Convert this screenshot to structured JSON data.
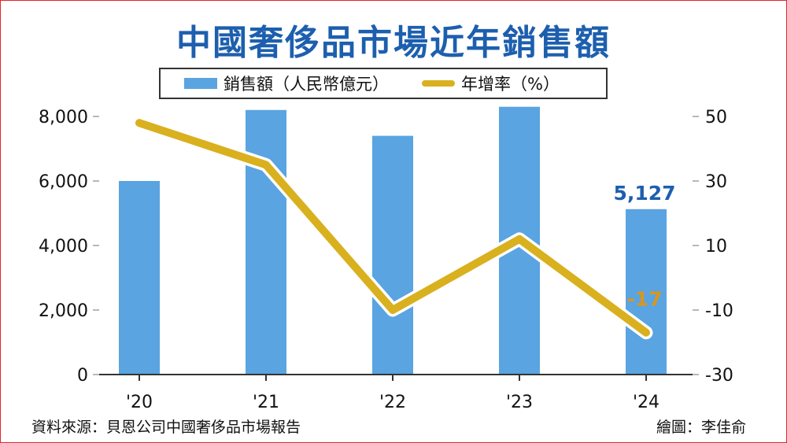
{
  "title": "中國奢侈品市場近年銷售額",
  "legend": {
    "bar_label": "銷售額（人民幣億元）",
    "line_label": "年增率（%）"
  },
  "source": "資料來源：貝恩公司中國奢侈品市場報告",
  "credit": "繪圖：李佳俞",
  "colors": {
    "title": "#1d5fae",
    "bar": "#5aa4e1",
    "line": "#d9b01e",
    "bar_label": "#1d5fae",
    "line_label": "#d9961e"
  },
  "chart_data": {
    "type": "bar",
    "categories": [
      "'20",
      "'21",
      "'22",
      "'23",
      "'24"
    ],
    "series": [
      {
        "name": "銷售額（人民幣億元）",
        "type": "bar",
        "axis": "left",
        "values": [
          6000,
          8200,
          7400,
          8300,
          5127
        ]
      },
      {
        "name": "年增率（%）",
        "type": "line",
        "axis": "right",
        "values": [
          48,
          35,
          -10,
          12,
          -17
        ]
      }
    ],
    "left_axis": {
      "ylim": [
        0,
        8000
      ],
      "ticks": [
        "0",
        "2,000",
        "4,000",
        "6,000",
        "8,000"
      ],
      "tick_values": [
        0,
        2000,
        4000,
        6000,
        8000
      ]
    },
    "right_axis": {
      "ylim": [
        -30,
        50
      ],
      "ticks": [
        "-30",
        "-10",
        "10",
        "30",
        "50"
      ],
      "tick_values": [
        -30,
        -10,
        10,
        30,
        50
      ]
    },
    "annotations": [
      {
        "text": "5,127",
        "category": "'24",
        "series": "銷售額（人民幣億元）"
      },
      {
        "text": "-17",
        "category": "'24",
        "series": "年增率（%）"
      }
    ],
    "grid": false,
    "legend_position": "top"
  }
}
